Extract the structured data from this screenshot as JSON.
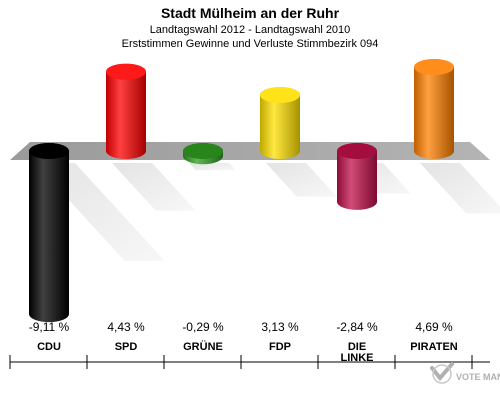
{
  "chart_data": {
    "type": "bar",
    "title": "Stadt Mülheim an der Ruhr",
    "subtitle": "Landtagswahl 2012 - Landtagswahl 2010",
    "subtitle2": "Erststimmen Gewinne und Verluste Stimmbezirk 094",
    "categories": [
      "CDU",
      "SPD",
      "GRÜNE",
      "FDP",
      "DIE LINKE",
      "PIRATEN"
    ],
    "values": [
      -9.11,
      4.43,
      -0.29,
      3.13,
      -2.84,
      4.69
    ],
    "value_labels": [
      "-9,11 %",
      "4,43 %",
      "-0,29 %",
      "3,13 %",
      "-2,84 %",
      "4,69 %"
    ],
    "colors": [
      "#000000",
      "#ff0000",
      "#2e9c20",
      "#ffe000",
      "#c0104a",
      "#ff8000"
    ],
    "ylim": [
      -9.11,
      4.69
    ]
  },
  "watermark": "VOTE MANAGER"
}
